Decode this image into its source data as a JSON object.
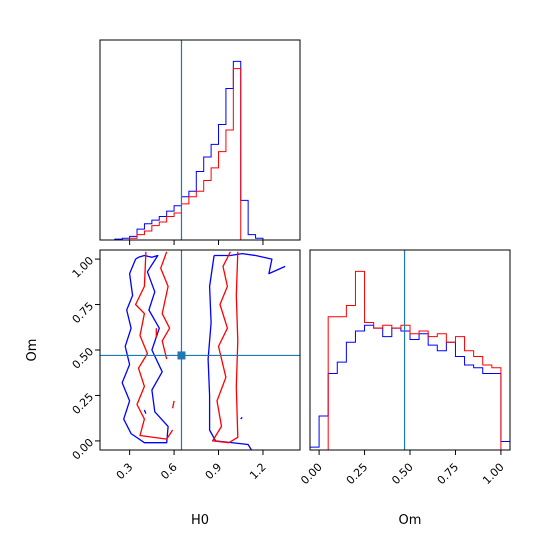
{
  "chart_data": {
    "type": "corner",
    "parameters": [
      "H0",
      "Om"
    ],
    "colors": {
      "series_a": "#0000ff",
      "series_b": "#ff0000",
      "truth": "#1f77b4"
    },
    "truth": {
      "H0": 0.65,
      "Om": 0.47
    },
    "axes": {
      "H0": {
        "range": [
          0.1,
          1.45
        ],
        "ticks": [
          0.3,
          0.6,
          0.9,
          1.2
        ],
        "tick_labels": [
          "0.3",
          "0.6",
          "0.9",
          "1.2"
        ],
        "label": "H0"
      },
      "Om": {
        "range": [
          -0.05,
          1.05
        ],
        "ticks": [
          0.0,
          0.25,
          0.5,
          0.75,
          1.0
        ],
        "tick_labels": [
          "0.00",
          "0.25",
          "0.50",
          "0.75",
          "1.00"
        ],
        "label": "Om"
      }
    },
    "panels": {
      "hist_H0": {
        "bin_edges": [
          0.1,
          0.15,
          0.2,
          0.25,
          0.3,
          0.35,
          0.4,
          0.45,
          0.5,
          0.55,
          0.6,
          0.65,
          0.7,
          0.75,
          0.8,
          0.85,
          0.9,
          0.95,
          1.0,
          1.05,
          1.1,
          1.15,
          1.2,
          1.25,
          1.3,
          1.35,
          1.4,
          1.45
        ],
        "series": [
          {
            "key": "series_a",
            "values": [
              0,
              0,
              0.5,
              1,
              2,
              6,
              9,
              11,
              13,
              16,
              19,
              24,
              27,
              38,
              46,
              53,
              64,
              84,
              99,
              22,
              3,
              1,
              0,
              0,
              0,
              0,
              0
            ]
          },
          {
            "key": "series_b",
            "values": [
              0,
              0,
              0,
              0,
              1,
              3,
              5,
              8,
              10,
              13,
              15,
              20,
              24,
              27,
              33,
              40,
              49,
              61,
              95,
              0,
              0,
              0,
              0,
              0,
              0,
              0,
              0
            ]
          }
        ]
      },
      "hist_Om": {
        "bin_edges": [
          -0.05,
          0.0,
          0.05,
          0.1,
          0.15,
          0.2,
          0.25,
          0.3,
          0.35,
          0.4,
          0.45,
          0.5,
          0.55,
          0.6,
          0.65,
          0.7,
          0.75,
          0.8,
          0.85,
          0.9,
          0.95,
          1.0,
          1.05
        ],
        "series": [
          {
            "key": "series_a",
            "values": [
              1,
              12,
              27,
              31,
              38,
              42,
              44,
              43,
              40,
              43,
              42,
              39,
              41,
              37,
              35,
              38,
              33,
              30,
              29,
              27,
              27,
              3
            ]
          },
          {
            "key": "series_b",
            "values": [
              0,
              0,
              47,
              47,
              51,
              63,
              45,
              43,
              44,
              43,
              44,
              41,
              42,
              40,
              41,
              38,
              40,
              35,
              33,
              30,
              29,
              0
            ]
          }
        ]
      },
      "contour_H0_Om": {
        "series": [
          {
            "key": "series_a",
            "paths": [
              [
                [
                  0.34,
                  1.0
                ],
                [
                  0.3,
                  0.92
                ],
                [
                  0.32,
                  0.8
                ],
                [
                  0.28,
                  0.72
                ],
                [
                  0.31,
                  0.62
                ],
                [
                  0.27,
                  0.52
                ],
                [
                  0.3,
                  0.42
                ],
                [
                  0.25,
                  0.32
                ],
                [
                  0.3,
                  0.22
                ],
                [
                  0.26,
                  0.12
                ],
                [
                  0.31,
                  0.04
                ],
                [
                  0.4,
                  -0.01
                ],
                [
                  0.55,
                  -0.01
                ],
                [
                  0.56,
                  0.08
                ],
                [
                  0.47,
                  0.16
                ],
                [
                  0.45,
                  0.28
                ],
                [
                  0.52,
                  0.38
                ],
                [
                  0.45,
                  0.5
                ],
                [
                  0.5,
                  0.62
                ],
                [
                  0.43,
                  0.72
                ],
                [
                  0.47,
                  0.82
                ],
                [
                  0.42,
                  0.93
                ],
                [
                  0.49,
                  1.02
                ],
                [
                  0.45,
                  1.01
                ],
                [
                  0.4,
                  1.02
                ],
                [
                  0.36,
                  1.01
                ],
                [
                  0.34,
                  1.0
                ]
              ],
              [
                [
                  0.87,
                  1.02
                ],
                [
                  0.84,
                  0.85
                ],
                [
                  0.85,
                  0.65
                ],
                [
                  0.83,
                  0.45
                ],
                [
                  0.84,
                  0.25
                ],
                [
                  0.84,
                  0.06
                ],
                [
                  0.88,
                  0.0
                ],
                [
                  1.1,
                  -0.02
                ],
                [
                  1.13,
                  -0.06
                ]
              ],
              [
                [
                  1.35,
                  0.96
                ],
                [
                  1.24,
                  0.92
                ],
                [
                  1.26,
                  1.0
                ],
                [
                  1.15,
                  1.02
                ],
                [
                  1.06,
                  1.03
                ],
                [
                  0.98,
                  1.02
                ],
                [
                  0.87,
                  1.02
                ]
              ],
              [
                [
                  0.4,
                  0.17
                ],
                [
                  0.41,
                  0.15
                ]
              ],
              [
                [
                  1.06,
                  0.13
                ],
                [
                  1.05,
                  0.12
                ]
              ]
            ]
          },
          {
            "key": "series_b",
            "paths": [
              [
                [
                  0.41,
                  1.04
                ],
                [
                  0.4,
                  0.85
                ],
                [
                  0.34,
                  0.75
                ],
                [
                  0.4,
                  0.7
                ],
                [
                  0.37,
                  0.58
                ],
                [
                  0.42,
                  0.48
                ],
                [
                  0.36,
                  0.4
                ],
                [
                  0.4,
                  0.3
                ],
                [
                  0.35,
                  0.2
                ],
                [
                  0.4,
                  0.12
                ],
                [
                  0.37,
                  0.03
                ],
                [
                  0.55,
                  0.01
                ],
                [
                  0.59,
                  0.06
                ]
              ],
              [
                [
                  0.55,
                  1.04
                ],
                [
                  0.51,
                  0.95
                ],
                [
                  0.56,
                  0.85
                ],
                [
                  0.52,
                  0.7
                ],
                [
                  0.57,
                  0.62
                ],
                [
                  0.52,
                  0.55
                ],
                [
                  0.55,
                  0.45
                ]
              ],
              [
                [
                  1.03,
                  1.04
                ],
                [
                  1.02,
                  0.8
                ],
                [
                  1.03,
                  0.55
                ],
                [
                  1.02,
                  0.3
                ],
                [
                  1.03,
                  0.02
                ],
                [
                  0.97,
                  -0.01
                ],
                [
                  0.86,
                  0.0
                ],
                [
                  0.92,
                  0.08
                ],
                [
                  0.89,
                  0.22
                ],
                [
                  0.95,
                  0.35
                ],
                [
                  0.9,
                  0.52
                ],
                [
                  0.96,
                  0.62
                ],
                [
                  0.91,
                  0.75
                ],
                [
                  0.96,
                  0.85
                ],
                [
                  0.93,
                  0.96
                ],
                [
                  0.98,
                  1.04
                ]
              ],
              [
                [
                  0.48,
                  0.62
                ],
                [
                  0.48,
                  0.57
                ]
              ],
              [
                [
                  0.6,
                  0.22
                ],
                [
                  0.59,
                  0.18
                ]
              ]
            ]
          }
        ]
      }
    }
  }
}
